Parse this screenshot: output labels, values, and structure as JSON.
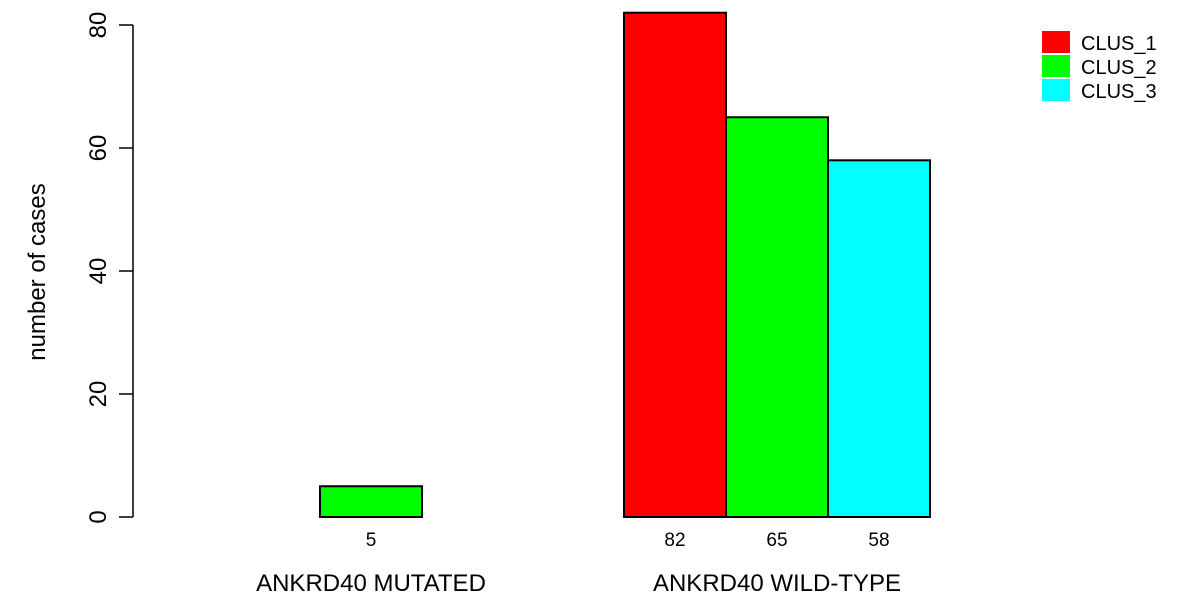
{
  "chart_data": {
    "type": "bar",
    "title": "",
    "xlabel": "",
    "ylabel": "number of cases",
    "ylim": [
      0,
      80
    ],
    "y_ticks": [
      0,
      20,
      40,
      60,
      80
    ],
    "groups": [
      "ANKRD40 MUTATED",
      "ANKRD40 WILD-TYPE"
    ],
    "series": [
      {
        "name": "CLUS_1",
        "color": "#ff0000",
        "values": [
          0,
          82
        ]
      },
      {
        "name": "CLUS_2",
        "color": "#00ff00",
        "values": [
          5,
          65
        ]
      },
      {
        "name": "CLUS_3",
        "color": "#00ffff",
        "values": [
          0,
          58
        ]
      }
    ],
    "data_labels": [
      [
        "",
        "5",
        ""
      ],
      [
        "82",
        "65",
        "58"
      ]
    ],
    "legend_position": "top-right",
    "grid": false
  }
}
